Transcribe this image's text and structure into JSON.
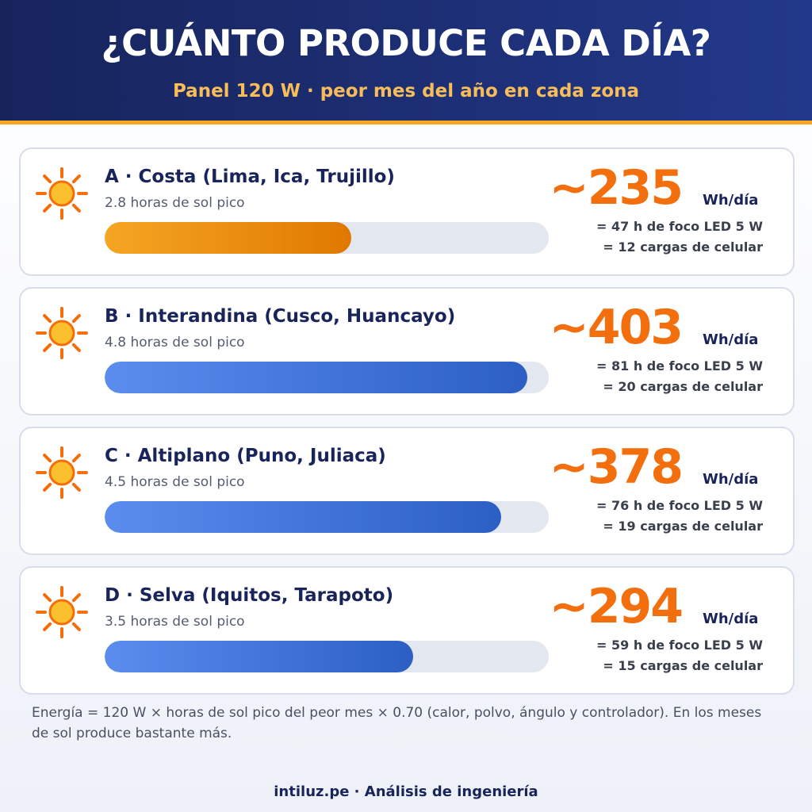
{
  "header": {
    "title": "¿CUÁNTO PRODUCE CADA DÍA?",
    "subtitle": "Panel 120 W · peor mes del año en cada zona"
  },
  "rows": [
    {
      "label": "A · Costa (Lima, Ica, Trujillo)",
      "hours": "2.8 horas de sol pico",
      "value": 235,
      "value_label": "~235",
      "unit": "Wh/día",
      "eq1": "= 47 h de foco LED 5 W",
      "eq2": "= 12 cargas de celular",
      "colors": [
        "#f5a623",
        "#e07800"
      ]
    },
    {
      "label": "B · Interandina (Cusco, Huancayo)",
      "hours": "4.8 horas de sol pico",
      "value": 403,
      "value_label": "~403",
      "unit": "Wh/día",
      "eq1": "= 81 h de foco LED 5 W",
      "eq2": "= 20 cargas de celular",
      "colors": [
        "#5b8def",
        "#2c5fc4"
      ]
    },
    {
      "label": "C · Altiplano (Puno, Juliaca)",
      "hours": "4.5 horas de sol pico",
      "value": 378,
      "value_label": "~378",
      "unit": "Wh/día",
      "eq1": "= 76 h de foco LED 5 W",
      "eq2": "= 19 cargas de celular",
      "colors": [
        "#5b8def",
        "#2c5fc4"
      ]
    },
    {
      "label": "D · Selva (Iquitos, Tarapoto)",
      "hours": "3.5 horas de sol pico",
      "value": 294,
      "value_label": "~294",
      "unit": "Wh/día",
      "eq1": "= 59 h de foco LED 5 W",
      "eq2": "= 15 cargas de celular",
      "colors": [
        "#5b8def",
        "#2c5fc4"
      ]
    }
  ],
  "note": "Energía = 120 W × horas de sol pico del peor mes × 0.70 (calor, polvo, ángulo y controlador). En los meses de sol produce bastante más.",
  "footer": "intiluz.pe · Análisis de ingeniería"
}
